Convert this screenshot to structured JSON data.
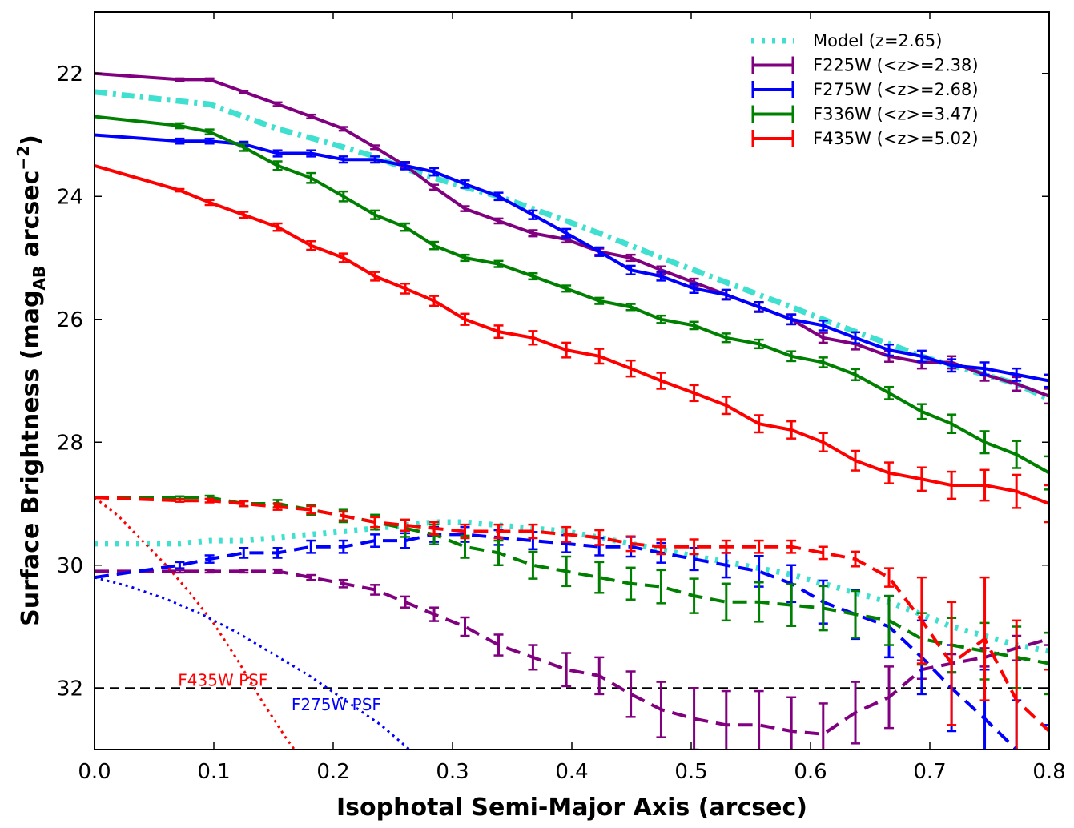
{
  "chart_data": {
    "type": "line",
    "xlabel": "Isophotal Semi-Major Axis (arcsec)",
    "ylabel": "Surface Brightness (mag_AB arcsec^-2)",
    "ylabel_parts": {
      "pre": "Surface Brightness (mag",
      "sub": "AB",
      "mid": " arcsec",
      "sup": "−2",
      "post": ")"
    },
    "xlim": [
      0.0,
      0.8
    ],
    "ylim": [
      33.0,
      21.0
    ],
    "y_inverted": true,
    "x_ticks": [
      "0.0",
      "0.1",
      "0.2",
      "0.3",
      "0.4",
      "0.5",
      "0.6",
      "0.7",
      "0.8"
    ],
    "y_ticks": [
      "22",
      "24",
      "26",
      "28",
      "30",
      "32"
    ],
    "legend_position": "top-right",
    "reference_line": {
      "y": 32.0,
      "style": "dashed",
      "color": "#000000"
    },
    "x": [
      0.0,
      0.0714,
      0.0964,
      0.125,
      0.1534,
      0.1814,
      0.2086,
      0.235,
      0.2604,
      0.2846,
      0.3104,
      0.3386,
      0.3674,
      0.3954,
      0.423,
      0.4494,
      0.4748,
      0.5024,
      0.5294,
      0.5568,
      0.584,
      0.6106,
      0.6376,
      0.6658,
      0.6932,
      0.7182,
      0.746,
      0.7726,
      0.8
    ],
    "series": [
      {
        "name": "Model (z=2.65)",
        "color": "#40e0d0",
        "style": "dash-dot",
        "kind": "model",
        "values": [
          22.3,
          22.45,
          22.5,
          22.7,
          22.9,
          23.05,
          23.2,
          23.35,
          23.55,
          23.7,
          23.85,
          24.0,
          24.2,
          24.4,
          24.6,
          24.8,
          25.0,
          25.2,
          25.4,
          25.6,
          25.8,
          26.0,
          26.2,
          26.4,
          26.6,
          26.75,
          26.9,
          27.05,
          27.3
        ]
      },
      {
        "name": "Model (z=2.65)",
        "color": "#40e0d0",
        "style": "dotted",
        "kind": "model-faint",
        "values": [
          29.65,
          29.65,
          29.6,
          29.6,
          29.55,
          29.5,
          29.45,
          29.4,
          29.35,
          29.3,
          29.3,
          29.35,
          29.4,
          29.45,
          29.55,
          29.65,
          29.75,
          29.85,
          29.95,
          30.05,
          30.15,
          30.3,
          30.45,
          30.6,
          30.8,
          31.0,
          31.15,
          31.3,
          31.4
        ]
      },
      {
        "name": "F225W (<z>=2.38)",
        "color": "#800080",
        "style": "solid",
        "values": [
          22.0,
          22.1,
          22.1,
          22.3,
          22.5,
          22.7,
          22.9,
          23.2,
          23.5,
          23.85,
          24.2,
          24.4,
          24.6,
          24.7,
          24.9,
          25.0,
          25.2,
          25.4,
          25.6,
          25.8,
          26.0,
          26.3,
          26.4,
          26.6,
          26.7,
          26.7,
          26.9,
          27.05,
          27.25
        ],
        "errors": [
          0.0,
          0.02,
          0.02,
          0.02,
          0.03,
          0.03,
          0.03,
          0.03,
          0.04,
          0.04,
          0.04,
          0.04,
          0.05,
          0.05,
          0.05,
          0.05,
          0.06,
          0.06,
          0.07,
          0.07,
          0.08,
          0.08,
          0.09,
          0.09,
          0.1,
          0.1,
          0.1,
          0.11,
          0.12
        ]
      },
      {
        "name": "F275W (<z>=2.68)",
        "color": "#0000ff",
        "style": "solid",
        "values": [
          23.0,
          23.1,
          23.1,
          23.15,
          23.3,
          23.3,
          23.4,
          23.4,
          23.5,
          23.6,
          23.8,
          24.0,
          24.3,
          24.6,
          24.9,
          25.2,
          25.3,
          25.5,
          25.6,
          25.8,
          26.0,
          26.1,
          26.3,
          26.5,
          26.6,
          26.75,
          26.8,
          26.9,
          27.0
        ],
        "errors": [
          0.0,
          0.04,
          0.04,
          0.04,
          0.05,
          0.05,
          0.05,
          0.05,
          0.06,
          0.06,
          0.06,
          0.06,
          0.07,
          0.07,
          0.07,
          0.07,
          0.07,
          0.07,
          0.08,
          0.08,
          0.08,
          0.08,
          0.09,
          0.09,
          0.09,
          0.1,
          0.1,
          0.1,
          0.1
        ]
      },
      {
        "name": "F336W (<z>=3.47)",
        "color": "#008000",
        "style": "solid",
        "values": [
          22.7,
          22.85,
          22.95,
          23.2,
          23.5,
          23.7,
          24.0,
          24.3,
          24.5,
          24.8,
          25.0,
          25.1,
          25.3,
          25.5,
          25.7,
          25.8,
          26.0,
          26.1,
          26.3,
          26.4,
          26.6,
          26.7,
          26.9,
          27.2,
          27.5,
          27.7,
          28.0,
          28.2,
          28.5
        ],
        "errors": [
          0.0,
          0.04,
          0.04,
          0.06,
          0.07,
          0.08,
          0.08,
          0.07,
          0.06,
          0.06,
          0.05,
          0.05,
          0.05,
          0.05,
          0.05,
          0.05,
          0.06,
          0.06,
          0.07,
          0.07,
          0.08,
          0.08,
          0.09,
          0.1,
          0.12,
          0.15,
          0.18,
          0.22,
          0.27
        ]
      },
      {
        "name": "F435W (<z>=5.02)",
        "color": "#ff0000",
        "style": "solid",
        "values": [
          23.5,
          23.9,
          24.1,
          24.3,
          24.5,
          24.8,
          25.0,
          25.3,
          25.5,
          25.7,
          26.0,
          26.2,
          26.3,
          26.5,
          26.6,
          26.8,
          27.0,
          27.2,
          27.4,
          27.7,
          27.8,
          28.0,
          28.3,
          28.5,
          28.6,
          28.7,
          28.7,
          28.8,
          29.0
        ],
        "errors": [
          0.0,
          0.02,
          0.04,
          0.05,
          0.06,
          0.07,
          0.07,
          0.07,
          0.08,
          0.08,
          0.09,
          0.1,
          0.11,
          0.12,
          0.12,
          0.13,
          0.13,
          0.13,
          0.14,
          0.14,
          0.14,
          0.15,
          0.16,
          0.17,
          0.19,
          0.22,
          0.25,
          0.27,
          0.3
        ]
      },
      {
        "name": "F225W (<z>=2.38)",
        "color": "#800080",
        "style": "dashed",
        "kind": "faint",
        "values": [
          30.1,
          30.1,
          30.1,
          30.1,
          30.1,
          30.2,
          30.3,
          30.4,
          30.6,
          30.8,
          31.0,
          31.3,
          31.5,
          31.7,
          31.8,
          32.1,
          32.35,
          32.5,
          32.6,
          32.6,
          32.7,
          32.75,
          32.4,
          32.15,
          31.7,
          31.6,
          31.5,
          31.35,
          31.2
        ],
        "errors": [
          0.0,
          0.02,
          0.02,
          0.02,
          0.03,
          0.04,
          0.06,
          0.08,
          0.09,
          0.11,
          0.15,
          0.17,
          0.2,
          0.27,
          0.3,
          0.37,
          0.45,
          0.5,
          0.55,
          0.55,
          0.55,
          0.5,
          0.5,
          0.5,
          0.15,
          0.15,
          0.15,
          0.2,
          0.1
        ]
      },
      {
        "name": "F275W (<z>=2.68)",
        "color": "#0000ff",
        "style": "dashed",
        "kind": "faint",
        "values": [
          30.2,
          30.0,
          29.9,
          29.8,
          29.8,
          29.7,
          29.7,
          29.6,
          29.6,
          29.5,
          29.5,
          29.55,
          29.6,
          29.65,
          29.7,
          29.7,
          29.8,
          29.9,
          30.0,
          30.1,
          30.3,
          30.6,
          30.8,
          31.0,
          31.5,
          32.0,
          32.5,
          33.0,
          33.4
        ],
        "errors": [
          0.0,
          0.05,
          0.06,
          0.08,
          0.08,
          0.1,
          0.1,
          0.1,
          0.12,
          0.12,
          0.12,
          0.12,
          0.14,
          0.14,
          0.14,
          0.16,
          0.16,
          0.18,
          0.2,
          0.25,
          0.3,
          0.35,
          0.4,
          0.5,
          0.6,
          0.7,
          0.8,
          0.8,
          0.8
        ]
      },
      {
        "name": "F336W (<z>=3.47)",
        "color": "#008000",
        "style": "dashed",
        "kind": "faint",
        "values": [
          28.9,
          28.9,
          28.9,
          29.0,
          29.0,
          29.1,
          29.2,
          29.3,
          29.4,
          29.5,
          29.7,
          29.8,
          30.0,
          30.1,
          30.2,
          30.3,
          30.35,
          30.5,
          30.6,
          30.6,
          30.65,
          30.7,
          30.8,
          30.9,
          31.2,
          31.3,
          31.4,
          31.5,
          31.6
        ],
        "errors": [
          0.0,
          0.02,
          0.03,
          0.04,
          0.06,
          0.08,
          0.1,
          0.12,
          0.14,
          0.16,
          0.18,
          0.2,
          0.22,
          0.24,
          0.25,
          0.26,
          0.27,
          0.28,
          0.3,
          0.32,
          0.34,
          0.36,
          0.38,
          0.4,
          0.42,
          0.44,
          0.46,
          0.5,
          0.5
        ]
      },
      {
        "name": "F435W (<z>=5.02)",
        "color": "#ff0000",
        "style": "dashed",
        "kind": "faint",
        "values": [
          28.9,
          28.95,
          28.95,
          29.0,
          29.05,
          29.1,
          29.2,
          29.3,
          29.35,
          29.4,
          29.45,
          29.45,
          29.45,
          29.5,
          29.55,
          29.65,
          29.7,
          29.7,
          29.7,
          29.7,
          29.7,
          29.8,
          29.9,
          30.2,
          30.9,
          31.6,
          31.2,
          32.2,
          32.7
        ],
        "errors": [
          0.0,
          0.02,
          0.03,
          0.04,
          0.05,
          0.06,
          0.07,
          0.08,
          0.09,
          0.1,
          0.11,
          0.11,
          0.11,
          0.12,
          0.12,
          0.12,
          0.12,
          0.12,
          0.1,
          0.1,
          0.1,
          0.1,
          0.12,
          0.15,
          0.7,
          1.0,
          1.0,
          1.3,
          1.0
        ]
      },
      {
        "name": "F435W PSF",
        "color": "#ff0000",
        "style": "dotted",
        "kind": "psf",
        "x": [
          0.0,
          0.02,
          0.04,
          0.06,
          0.08,
          0.1,
          0.12,
          0.14,
          0.16,
          0.175
        ],
        "values": [
          28.9,
          29.2,
          29.6,
          30.0,
          30.45,
          30.95,
          31.55,
          32.2,
          32.8,
          33.2
        ]
      },
      {
        "name": "F275W PSF",
        "color": "#0000ff",
        "style": "dotted",
        "kind": "psf",
        "x": [
          0.0,
          0.03,
          0.06,
          0.09,
          0.12,
          0.15,
          0.18,
          0.21,
          0.24,
          0.27
        ],
        "values": [
          30.2,
          30.35,
          30.55,
          30.8,
          31.1,
          31.45,
          31.8,
          32.2,
          32.6,
          33.1
        ]
      }
    ],
    "legend": [
      {
        "label": "Model (z=2.65)",
        "color": "#40e0d0",
        "marker": "dotted"
      },
      {
        "label": "F225W (<z>=2.38)",
        "color": "#800080",
        "marker": "errorbar"
      },
      {
        "label": "F275W (<z>=2.68)",
        "color": "#0000ff",
        "marker": "errorbar"
      },
      {
        "label": "F336W (<z>=3.47)",
        "color": "#008000",
        "marker": "errorbar"
      },
      {
        "label": "F435W (<z>=5.02)",
        "color": "#ff0000",
        "marker": "errorbar"
      }
    ],
    "annotations": [
      {
        "text": "F435W PSF",
        "color": "#ff0000",
        "x": 0.07,
        "y": 31.87
      },
      {
        "text": "F275W PSF",
        "color": "#0000ff",
        "x": 0.165,
        "y": 32.27
      }
    ]
  }
}
